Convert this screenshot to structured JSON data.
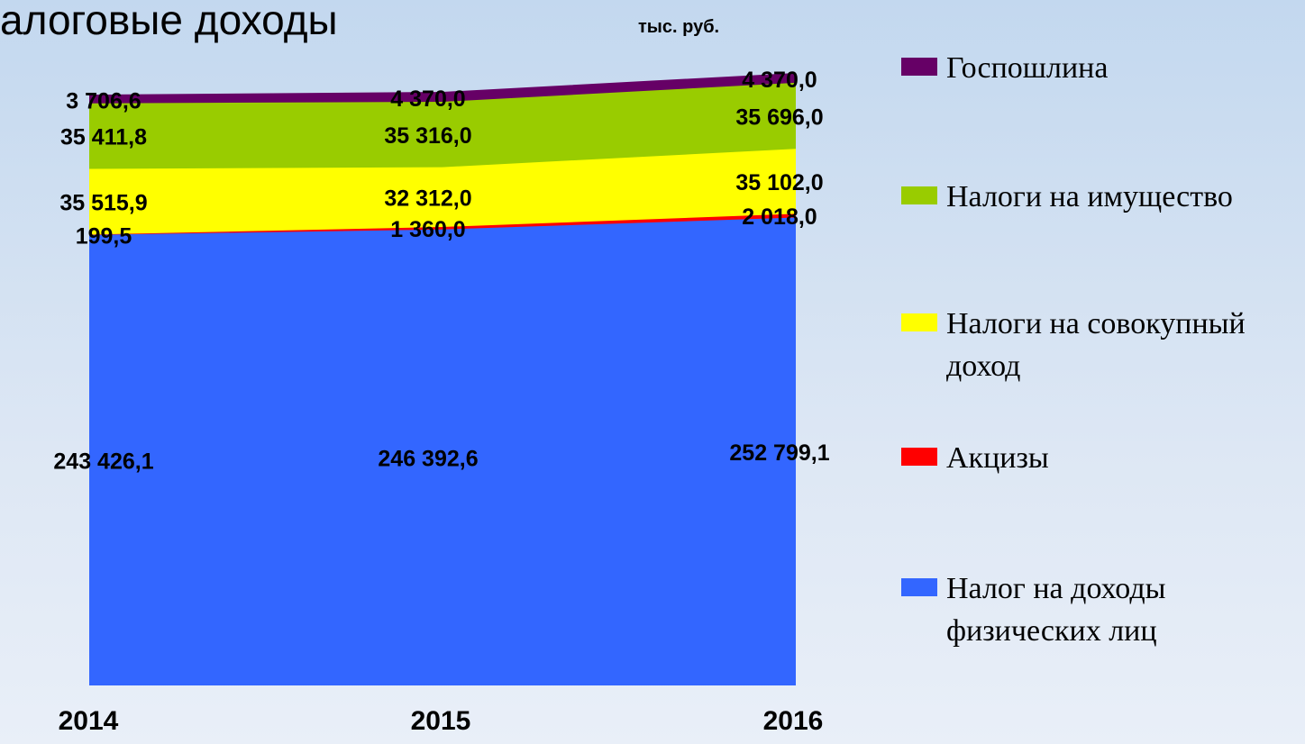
{
  "chart_data": {
    "type": "stacked_area",
    "title": "алоговые доходы",
    "subtitle": "тыс. руб.",
    "categories": [
      "2014",
      "2015",
      "2016"
    ],
    "series": [
      {
        "name": "Налог на доходы физических лиц",
        "color": "#3366ff",
        "values": [
          243426.1,
          246392.6,
          252799.1
        ],
        "value_labels": [
          "243 426,1",
          "246 392,6",
          "252 799,1"
        ]
      },
      {
        "name": "Акцизы",
        "color": "#ff0000",
        "values": [
          199.5,
          1360.0,
          2018.0
        ],
        "value_labels": [
          "199,5",
          "1 360,0",
          "2 018,0"
        ]
      },
      {
        "name": "Налоги на совокупный доход",
        "color": "#ffff00",
        "values": [
          35515.9,
          32312.0,
          35102.0
        ],
        "value_labels": [
          "35 515,9",
          "32 312,0",
          "35 102,0"
        ]
      },
      {
        "name": "Налоги на имущество",
        "color": "#99cc00",
        "values": [
          35411.8,
          35316.0,
          35696.0
        ],
        "value_labels": [
          "35 411,8",
          "35 316,0",
          "35 696,0"
        ]
      },
      {
        "name": "Госпошлина",
        "color": "#660066",
        "values": [
          3706.6,
          4370.0,
          4370.0
        ],
        "value_labels": [
          "3 706,6",
          "4 370,0",
          "4 370,0"
        ]
      }
    ]
  }
}
